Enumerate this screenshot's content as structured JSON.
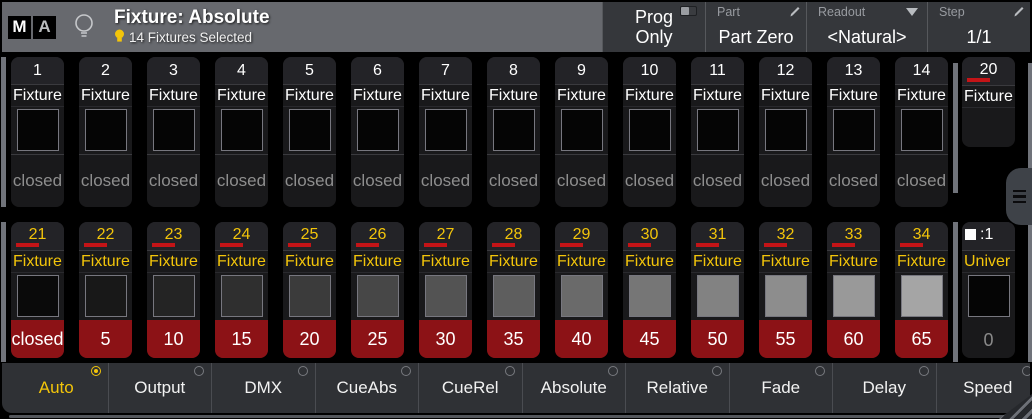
{
  "colors": {
    "accent_yellow": "#f3c50a",
    "value_red": "#8c1216",
    "mark_red": "#c41417",
    "titlebar_gray": "#67696e"
  },
  "header": {
    "logo_m": "M",
    "logo_a": "A",
    "title": "Fixture: Absolute",
    "selection_status": "14 Fixtures Selected",
    "prog_only": {
      "line1": "Prog",
      "line2": "Only"
    },
    "part": {
      "label": "Part",
      "value": "Part Zero"
    },
    "readout": {
      "label": "Readout",
      "value": "<Natural>"
    },
    "step": {
      "label": "Step",
      "value": "1/1"
    }
  },
  "grid": {
    "row1": [
      {
        "num": "1",
        "label": "Fixture",
        "value": "closed"
      },
      {
        "num": "2",
        "label": "Fixture",
        "value": "closed"
      },
      {
        "num": "3",
        "label": "Fixture",
        "value": "closed"
      },
      {
        "num": "4",
        "label": "Fixture",
        "value": "closed"
      },
      {
        "num": "5",
        "label": "Fixture",
        "value": "closed"
      },
      {
        "num": "6",
        "label": "Fixture",
        "value": "closed"
      },
      {
        "num": "7",
        "label": "Fixture",
        "value": "closed"
      },
      {
        "num": "8",
        "label": "Fixture",
        "value": "closed"
      },
      {
        "num": "9",
        "label": "Fixture",
        "value": "closed"
      },
      {
        "num": "10",
        "label": "Fixture",
        "value": "closed"
      },
      {
        "num": "11",
        "label": "Fixture",
        "value": "closed"
      },
      {
        "num": "12",
        "label": "Fixture",
        "value": "closed"
      },
      {
        "num": "13",
        "label": "Fixture",
        "value": "closed"
      },
      {
        "num": "14",
        "label": "Fixture",
        "value": "closed"
      }
    ],
    "row1_frozen": {
      "num": "20",
      "label": "Fixture",
      "marked": true
    },
    "row2": [
      {
        "num": "21",
        "label": "Fixture",
        "value": "closed",
        "level": 0,
        "marked": true
      },
      {
        "num": "22",
        "label": "Fixture",
        "value": "5",
        "level": 5,
        "marked": true
      },
      {
        "num": "23",
        "label": "Fixture",
        "value": "10",
        "level": 10,
        "marked": true
      },
      {
        "num": "24",
        "label": "Fixture",
        "value": "15",
        "level": 15,
        "marked": true
      },
      {
        "num": "25",
        "label": "Fixture",
        "value": "20",
        "level": 20,
        "marked": true
      },
      {
        "num": "26",
        "label": "Fixture",
        "value": "25",
        "level": 25,
        "marked": true
      },
      {
        "num": "27",
        "label": "Fixture",
        "value": "30",
        "level": 30,
        "marked": true
      },
      {
        "num": "28",
        "label": "Fixture",
        "value": "35",
        "level": 35,
        "marked": true
      },
      {
        "num": "29",
        "label": "Fixture",
        "value": "40",
        "level": 40,
        "marked": true
      },
      {
        "num": "30",
        "label": "Fixture",
        "value": "45",
        "level": 45,
        "marked": true
      },
      {
        "num": "31",
        "label": "Fixture",
        "value": "50",
        "level": 50,
        "marked": true
      },
      {
        "num": "32",
        "label": "Fixture",
        "value": "55",
        "level": 55,
        "marked": true
      },
      {
        "num": "33",
        "label": "Fixture",
        "value": "60",
        "level": 60,
        "marked": true
      },
      {
        "num": "34",
        "label": "Fixture",
        "value": "65",
        "level": 65,
        "marked": true
      }
    ],
    "row2_frozen": {
      "num": ":1",
      "label": "Univer",
      "value": "0",
      "icon": "white-square"
    }
  },
  "tabs": [
    {
      "label": "Auto",
      "selected": true
    },
    {
      "label": "Output",
      "selected": false
    },
    {
      "label": "DMX",
      "selected": false
    },
    {
      "label": "CueAbs",
      "selected": false
    },
    {
      "label": "CueRel",
      "selected": false
    },
    {
      "label": "Absolute",
      "selected": false
    },
    {
      "label": "Relative",
      "selected": false
    },
    {
      "label": "Fade",
      "selected": false
    },
    {
      "label": "Delay",
      "selected": false
    },
    {
      "label": "Speed",
      "selected": false
    },
    {
      "label": "S",
      "selected": false,
      "partial": true
    }
  ]
}
